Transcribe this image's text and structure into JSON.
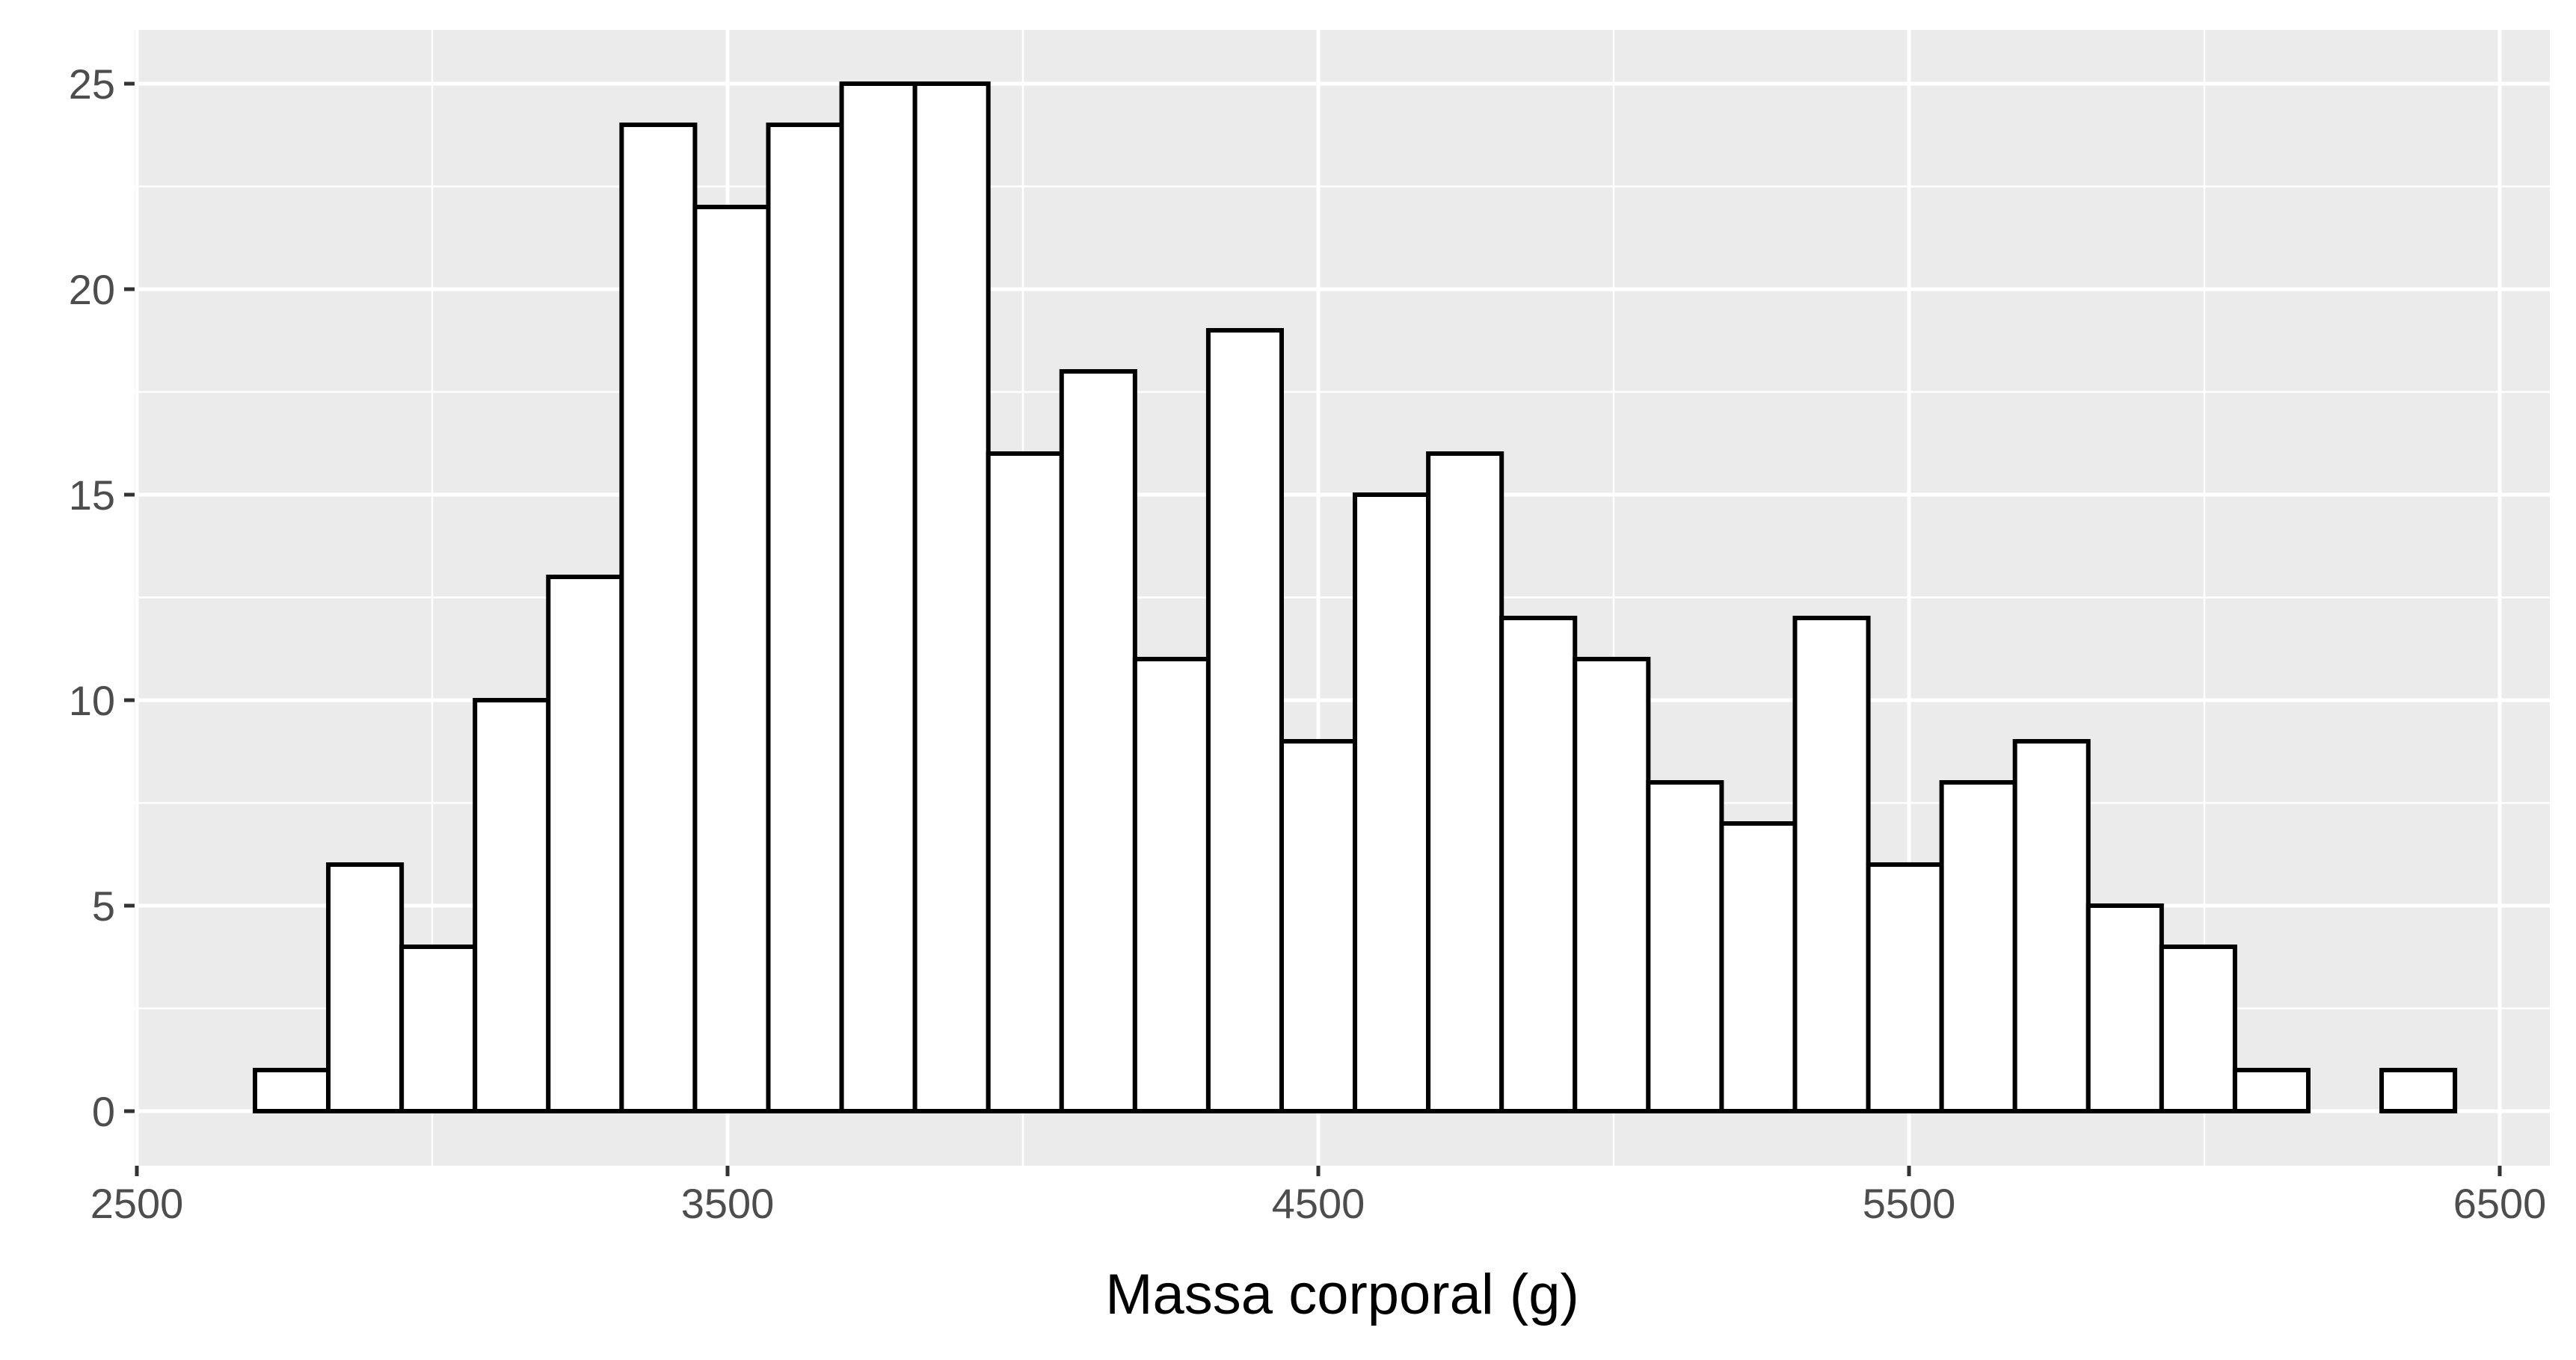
{
  "chart_data": {
    "type": "bar",
    "subtype": "histogram",
    "title": "",
    "xlabel": "Massa corporal (g)",
    "ylabel": "",
    "xlim": [
      2500,
      6500
    ],
    "ylim": [
      0,
      25
    ],
    "x_ticks": [
      2500,
      3500,
      4500,
      5500,
      6500
    ],
    "x_tick_labels": [
      "2500",
      "3500",
      "4500",
      "5500",
      "6500"
    ],
    "y_ticks": [
      0,
      5,
      10,
      15,
      20,
      25
    ],
    "y_tick_labels": [
      "0",
      "5",
      "10",
      "15",
      "20",
      "25"
    ],
    "bin_start": 2700,
    "bin_width": 124.14,
    "values": [
      1,
      6,
      4,
      10,
      13,
      24,
      22,
      24,
      25,
      25,
      16,
      18,
      11,
      19,
      9,
      15,
      16,
      12,
      11,
      8,
      7,
      12,
      6,
      8,
      9,
      5,
      4,
      1,
      0,
      1
    ],
    "grid": true,
    "legend": "none",
    "colors": {
      "panel_background": "#ebebeb",
      "grid": "#ffffff",
      "bar_fill": "#ffffff",
      "bar_stroke": "#000000"
    }
  }
}
